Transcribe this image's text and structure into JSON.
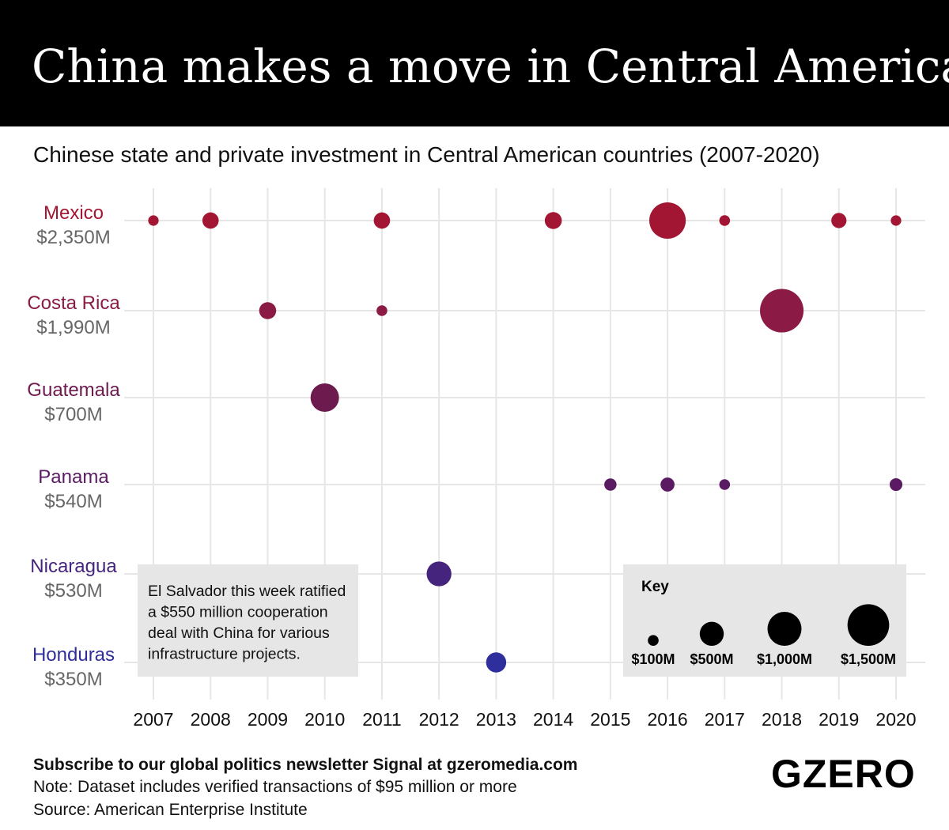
{
  "header": {
    "title": "China makes a move in Central America",
    "subtitle": "Chinese state and private investment in Central American countries (2007-2020)"
  },
  "chart_data": {
    "type": "scatter",
    "title": "China makes a move in Central America",
    "subtitle": "Chinese state and private investment in Central American countries (2007-2020)",
    "x_ticks": [
      "2007",
      "2008",
      "2009",
      "2010",
      "2011",
      "2012",
      "2013",
      "2014",
      "2015",
      "2016",
      "2017",
      "2018",
      "2019",
      "2020"
    ],
    "xlim": [
      2007,
      2020
    ],
    "grid": true,
    "size_unit": "US$ millions (bubble area)",
    "series": [
      {
        "name": "Mexico",
        "total": "$2,350M",
        "color": "#a31633",
        "points": [
          [
            2007,
            95
          ],
          [
            2008,
            230
          ],
          [
            2011,
            230
          ],
          [
            2014,
            250
          ],
          [
            2016,
            1150
          ],
          [
            2017,
            100
          ],
          [
            2019,
            200
          ],
          [
            2020,
            95
          ]
        ]
      },
      {
        "name": "Costa Rica",
        "total": "$1,990M",
        "color": "#8b1a44",
        "points": [
          [
            2009,
            250
          ],
          [
            2011,
            100
          ],
          [
            2018,
            1640
          ]
        ]
      },
      {
        "name": "Guatemala",
        "total": "$700M",
        "color": "#6d1a4e",
        "points": [
          [
            2010,
            700
          ]
        ]
      },
      {
        "name": "Panama",
        "total": "$540M",
        "color": "#5a1b62",
        "points": [
          [
            2015,
            130
          ],
          [
            2016,
            170
          ],
          [
            2017,
            100
          ],
          [
            2020,
            140
          ]
        ]
      },
      {
        "name": "Nicaragua",
        "total": "$530M",
        "color": "#45247e",
        "points": [
          [
            2012,
            530
          ]
        ]
      },
      {
        "name": "Honduras",
        "total": "$350M",
        "color": "#2e2e9c",
        "points": [
          [
            2013,
            350
          ]
        ]
      }
    ],
    "legend": {
      "title": "Key",
      "placement": "bottom-right",
      "entries": [
        {
          "label": "$100M",
          "value": 100
        },
        {
          "label": "$500M",
          "value": 500
        },
        {
          "label": "$1,000M",
          "value": 1000
        },
        {
          "label": "$1,500M",
          "value": 1500
        }
      ]
    },
    "annotation": "El Salvador this week ratified a $550 million cooperation deal with China for various infrastructure projects."
  },
  "annotation_lines": [
    "El Salvador this week ratified",
    "a $550 million cooperation",
    "deal with China for various",
    "infrastructure projects."
  ],
  "footer": {
    "subscribe": "Subscribe to our global politics newsletter Signal at gzeromedia.com",
    "note": "Note: Dataset includes verified transactions of $95 million or more",
    "source": "Source: American Enterprise Institute",
    "logo": "GZERO"
  }
}
